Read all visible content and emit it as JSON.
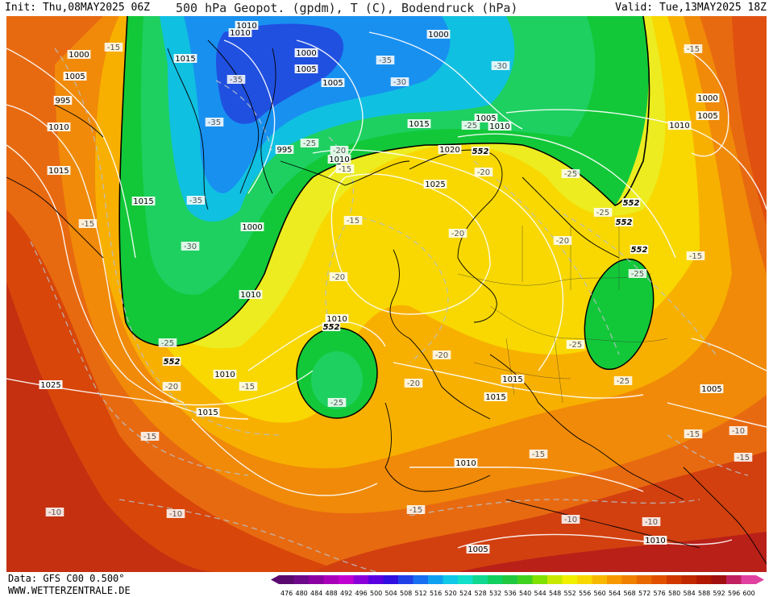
{
  "header": {
    "init": "Init: Thu,08MAY2025 06Z",
    "title": "500 hPa Geopot. (gpdm), T (C), Bodendruck (hPa)",
    "valid": "Valid: Tue,13MAY2025 18Z"
  },
  "footer": {
    "data_source": "Data: GFS C00 0.500°",
    "site": "WWW.WETTERZENTRALE.DE"
  },
  "legend": {
    "ticks": [
      "476",
      "480",
      "484",
      "488",
      "492",
      "496",
      "500",
      "504",
      "508",
      "512",
      "516",
      "520",
      "524",
      "528",
      "532",
      "536",
      "540",
      "544",
      "548",
      "552",
      "556",
      "560",
      "564",
      "568",
      "572",
      "576",
      "580",
      "584",
      "588",
      "592",
      "596",
      "600"
    ],
    "colors": [
      "#5a0a6e",
      "#6e0a8a",
      "#8a00a0",
      "#a800b8",
      "#c000d0",
      "#8a00d8",
      "#5a00e0",
      "#3010e0",
      "#2040e8",
      "#1870f0",
      "#10a0f0",
      "#10c8e8",
      "#10e0c8",
      "#10d890",
      "#10d060",
      "#20c840",
      "#40d020",
      "#80e000",
      "#c8e800",
      "#f0f000",
      "#f8d800",
      "#f8b800",
      "#f89800",
      "#f08000",
      "#e86800",
      "#e05000",
      "#d03800",
      "#c02800",
      "#b01800",
      "#a01010",
      "#c02060",
      "#e040a0"
    ]
  },
  "map_labels": {
    "pressure": [
      "1010",
      "1000",
      "1005",
      "995",
      "1015",
      "1000",
      "1005",
      "1010",
      "1015",
      "1000",
      "1005",
      "1010",
      "995",
      "1010",
      "1000",
      "1015",
      "1010",
      "1025",
      "1020",
      "1015",
      "1010",
      "1010",
      "1015",
      "1005",
      "1010",
      "1005",
      "1025",
      "1015",
      "1010",
      "1015",
      "1005",
      "1000",
      "1025",
      "1010",
      "1005",
      "1010"
    ],
    "temperature": [
      "-15",
      "-35",
      "-35",
      "-35",
      "-30",
      "-30",
      "-25",
      "-20",
      "-15",
      "-35",
      "-30",
      "-25",
      "-20",
      "-20",
      "-15",
      "-15",
      "-25",
      "-25",
      "-20",
      "-25",
      "-25",
      "-15",
      "-25",
      "-20",
      "-20",
      "-20",
      "-15",
      "-15",
      "-15",
      "-25",
      "-20",
      "-15",
      "-10",
      "-10",
      "-10",
      "-15",
      "-15",
      "-10",
      "-15",
      "-25",
      "-10"
    ],
    "geopot": [
      "552",
      "552",
      "552",
      "552",
      "552",
      "552"
    ]
  }
}
